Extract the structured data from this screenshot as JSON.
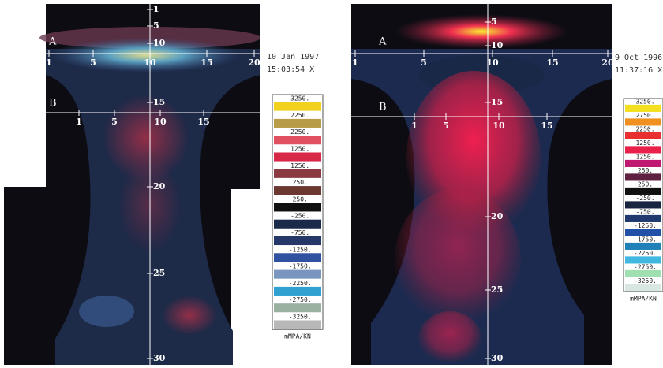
{
  "panels": [
    {
      "marker_a": "A",
      "marker_b": "B",
      "date": "10 Jan 1997",
      "time": "15:03:54 X",
      "vertical_ticks": [
        "1",
        "5",
        "10",
        "15",
        "20",
        "25",
        "30"
      ],
      "line_a_ticks": [
        "1",
        "5",
        "10",
        "15",
        "20"
      ],
      "line_b_ticks": [
        "1",
        "5",
        "10",
        "15"
      ],
      "scale": {
        "labels": [
          "3250.",
          "2250.",
          "2250.",
          "1250.",
          "1250.",
          "250.",
          "250.",
          "-250.",
          "-750.",
          "-1250.",
          "-1750.",
          "-2250.",
          "-2750.",
          "-3250."
        ],
        "colors": [
          "#f2d21e",
          "#b89c48",
          "#e05060",
          "#d82848",
          "#8a3a40",
          "#6a3830",
          "#101010",
          "#1c2a4a",
          "#26386a",
          "#3050a0",
          "#7a96c0",
          "#30a0d0",
          "#9ab0a0",
          "#b8b8b8"
        ],
        "unit": "mMPA/KN"
      }
    },
    {
      "marker_a": "A",
      "marker_b": "B",
      "date": "9 Oct 1996",
      "time": "11:37:16 X",
      "vertical_ticks": [
        "5",
        "10",
        "15",
        "20",
        "25",
        "30"
      ],
      "line_a_ticks": [
        "1",
        "5",
        "10",
        "15",
        "20"
      ],
      "line_b_ticks": [
        "1",
        "5",
        "10",
        "15"
      ],
      "scale": {
        "labels": [
          "3250.",
          "2750.",
          "2250.",
          "1250.",
          "1250.",
          "250.",
          "250.",
          "-250.",
          "-750.",
          "-1250.",
          "-1750.",
          "-2250.",
          "-2750.",
          "-3250."
        ],
        "colors": [
          "#f4e020",
          "#f09020",
          "#e83030",
          "#e8204a",
          "#c01870",
          "#602040",
          "#101010",
          "#182440",
          "#203a70",
          "#2050a8",
          "#2080b8",
          "#40b8e0",
          "#a0e0b0",
          "#d8e8e0"
        ],
        "unit": "mMPA/KN"
      }
    }
  ]
}
